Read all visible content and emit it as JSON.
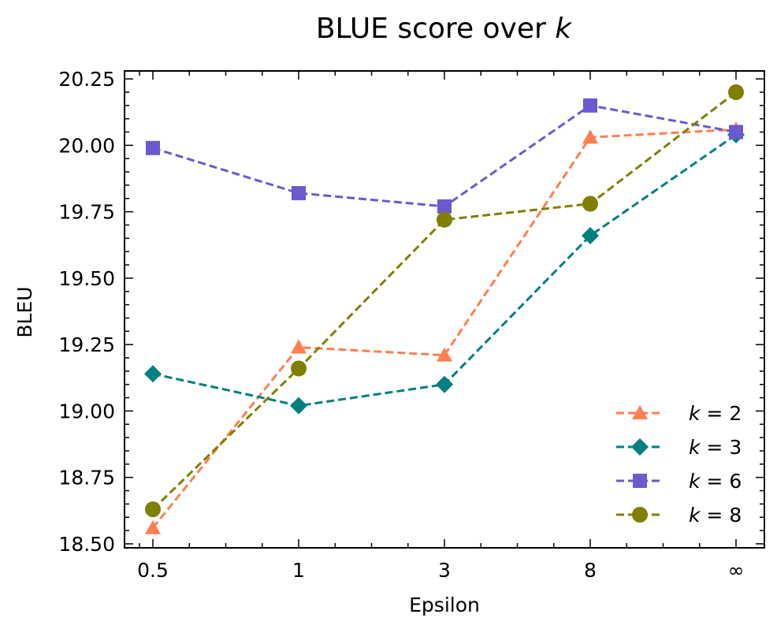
{
  "chart_data": {
    "type": "line",
    "title": "BLUE score over k",
    "title_main": "BLUE score over ",
    "title_var": "k",
    "xlabel": "Epsilon",
    "ylabel": "BLEU",
    "categories": [
      "0.5",
      "1",
      "3",
      "8",
      "∞"
    ],
    "ylim": [
      18.485,
      20.28
    ],
    "yticks": [
      "18.50",
      "18.75",
      "19.00",
      "19.25",
      "19.50",
      "19.75",
      "20.00",
      "20.25"
    ],
    "ytick_values": [
      18.5,
      18.75,
      19.0,
      19.25,
      19.5,
      19.75,
      20.0,
      20.25
    ],
    "grid": false,
    "legend_position": "bottom-right",
    "series": [
      {
        "name": "k = 2",
        "var": "k",
        "eq": " = 2",
        "color": "#FF7F50",
        "marker": "triangle",
        "values": [
          18.56,
          19.24,
          19.21,
          20.03,
          20.06
        ]
      },
      {
        "name": "k = 3",
        "var": "k",
        "eq": " = 3",
        "color": "#008080",
        "marker": "diamond",
        "values": [
          19.14,
          19.02,
          19.1,
          19.66,
          20.04
        ]
      },
      {
        "name": "k = 6",
        "var": "k",
        "eq": " = 6",
        "color": "#6A5ACD",
        "marker": "square",
        "values": [
          19.99,
          19.82,
          19.77,
          20.15,
          20.05
        ]
      },
      {
        "name": "k = 8",
        "var": "k",
        "eq": " = 8",
        "color": "#808000",
        "marker": "circle",
        "values": [
          18.63,
          19.16,
          19.72,
          19.78,
          20.2
        ]
      }
    ]
  }
}
